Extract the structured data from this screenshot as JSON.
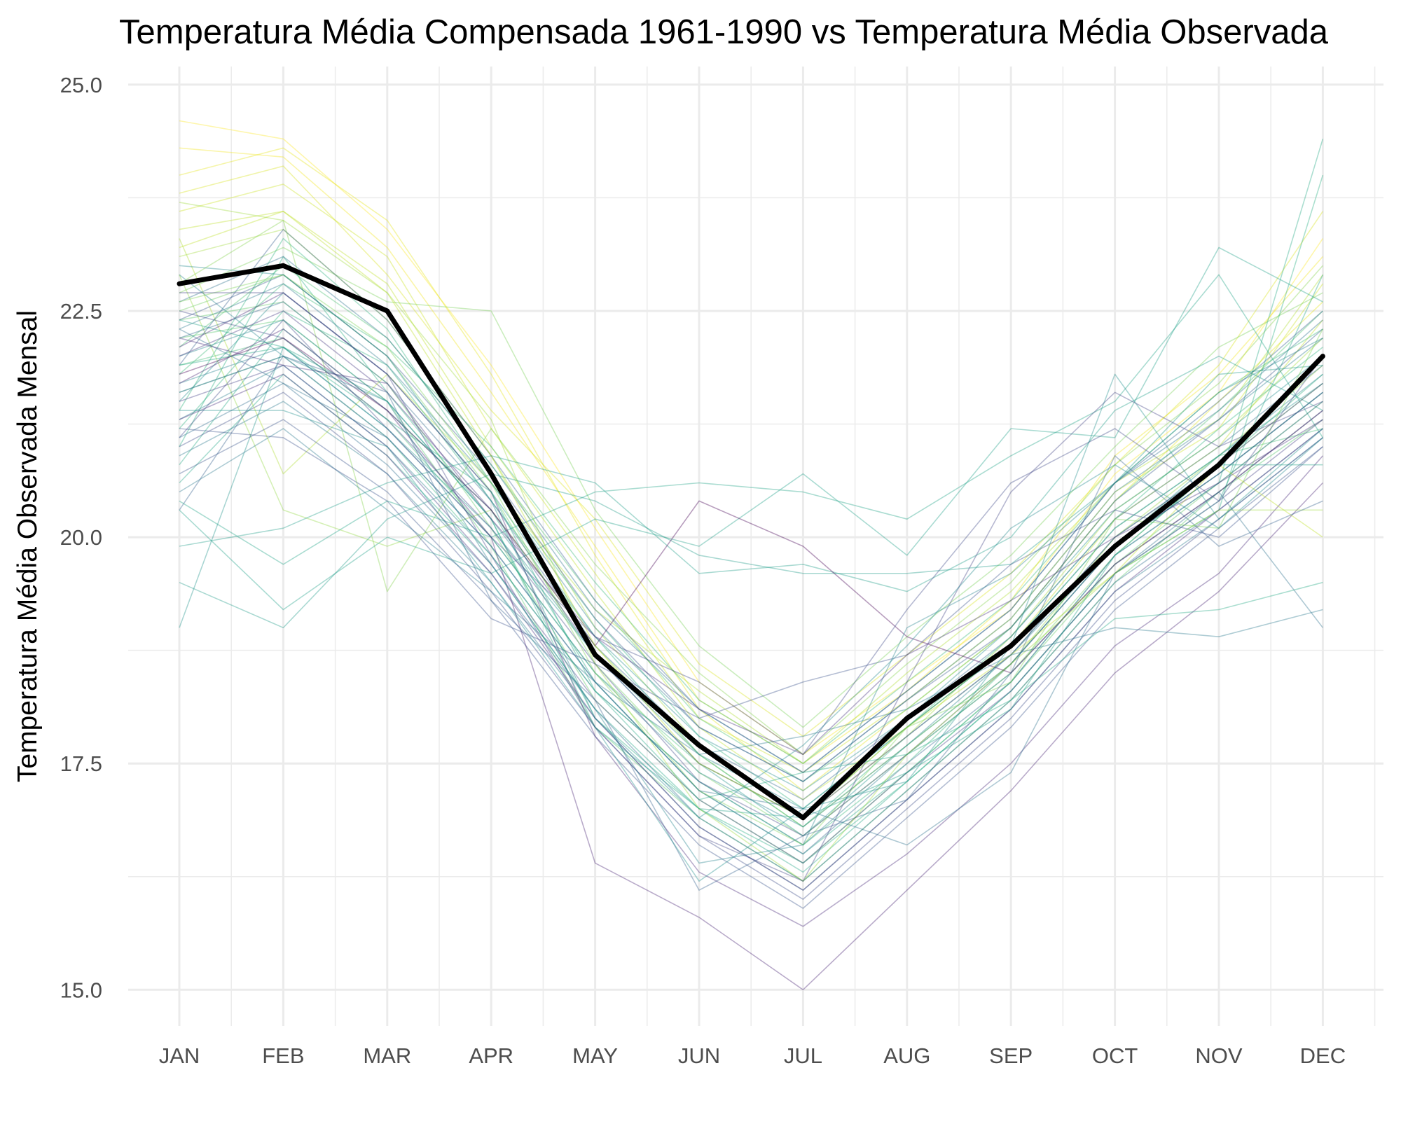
{
  "chart_data": {
    "type": "line",
    "title": "Temperatura Média Compensada 1961-1990 vs Temperatura Média Observada",
    "xlabel": "",
    "ylabel": "Temperatura Média Observada Mensal",
    "categories": [
      "JAN",
      "FEB",
      "MAR",
      "APR",
      "MAY",
      "JUN",
      "JUL",
      "AUG",
      "SEP",
      "OCT",
      "NOV",
      "DEC"
    ],
    "ylim": [
      14.6,
      25.2
    ],
    "yticks": [
      "15.0",
      "17.5",
      "20.0",
      "22.5",
      "25.0"
    ],
    "grid": true,
    "legend": "none",
    "colormap": "viridis",
    "series": [
      {
        "values": [
          22.8,
          23.0,
          22.5,
          20.7,
          18.7,
          17.7,
          16.9,
          18.0,
          18.8,
          19.9,
          20.8,
          22.0
        ],
        "color": "#000000",
        "role": "normal"
      },
      {
        "values": [
          24.6,
          24.4,
          23.4,
          21.9,
          20.1,
          18.4,
          17.6,
          18.4,
          19.2,
          20.7,
          21.6,
          23.3
        ],
        "color": "#fde725"
      },
      {
        "values": [
          24.3,
          24.2,
          23.2,
          21.6,
          19.9,
          18.2,
          17.5,
          18.3,
          19.3,
          20.9,
          21.8,
          23.1
        ],
        "color": "#f2e51d"
      },
      {
        "values": [
          24.0,
          24.3,
          23.5,
          21.8,
          19.8,
          18.1,
          17.2,
          18.1,
          19.0,
          20.4,
          21.5,
          22.6
        ],
        "color": "#e5e419"
      },
      {
        "values": [
          23.8,
          24.1,
          22.9,
          21.4,
          20.2,
          18.6,
          17.8,
          18.7,
          19.6,
          20.8,
          21.9,
          23.6
        ],
        "color": "#d8e219"
      },
      {
        "values": [
          23.6,
          23.9,
          23.1,
          21.2,
          19.6,
          18.0,
          17.4,
          18.2,
          19.1,
          20.5,
          21.2,
          22.8
        ],
        "color": "#cae11f"
      },
      {
        "values": [
          23.4,
          23.6,
          22.8,
          21.0,
          19.4,
          17.9,
          17.1,
          17.9,
          18.8,
          20.2,
          21.0,
          22.4
        ],
        "color": "#bddf26"
      },
      {
        "values": [
          23.3,
          20.7,
          21.8,
          20.6,
          19.2,
          18.3,
          17.5,
          18.5,
          19.4,
          20.6,
          21.3,
          22.9
        ],
        "color": "#addc30"
      },
      {
        "values": [
          23.1,
          23.4,
          22.4,
          20.9,
          19.0,
          17.7,
          16.9,
          17.8,
          18.9,
          20.3,
          21.1,
          22.2
        ],
        "color": "#a0da39"
      },
      {
        "values": [
          22.9,
          20.3,
          19.9,
          20.3,
          18.8,
          17.6,
          16.8,
          17.7,
          18.6,
          20.0,
          20.9,
          21.9
        ],
        "color": "#90d743"
      },
      {
        "values": [
          22.8,
          23.5,
          19.4,
          21.2,
          19.7,
          18.5,
          17.6,
          18.6,
          19.5,
          20.8,
          21.7,
          23.0
        ],
        "color": "#83d34b"
      },
      {
        "values": [
          22.7,
          23.2,
          22.6,
          22.5,
          20.3,
          18.8,
          17.9,
          18.9,
          19.8,
          21.0,
          22.1,
          22.7
        ],
        "color": "#75d054"
      },
      {
        "values": [
          22.5,
          22.9,
          22.0,
          20.5,
          18.6,
          17.4,
          16.7,
          17.6,
          18.5,
          19.8,
          20.8,
          21.7
        ],
        "color": "#68cd5b"
      },
      {
        "values": [
          22.4,
          22.6,
          21.7,
          20.1,
          18.2,
          17.1,
          16.4,
          17.4,
          18.4,
          19.7,
          20.6,
          21.5
        ],
        "color": "#5cc863"
      },
      {
        "values": [
          22.2,
          22.4,
          21.5,
          19.9,
          17.9,
          16.9,
          16.2,
          17.2,
          18.2,
          19.5,
          20.5,
          21.3
        ],
        "color": "#52c569"
      },
      {
        "values": [
          22.1,
          23.0,
          22.2,
          20.8,
          19.3,
          18.0,
          17.3,
          18.1,
          19.0,
          20.4,
          21.4,
          22.5
        ],
        "color": "#48c16e"
      },
      {
        "values": [
          21.9,
          22.2,
          21.3,
          20.0,
          18.5,
          17.5,
          16.9,
          17.9,
          18.8,
          20.1,
          20.9,
          21.2
        ],
        "color": "#3fbc73"
      },
      {
        "values": [
          21.8,
          22.8,
          22.1,
          21.0,
          19.5,
          18.2,
          17.5,
          18.4,
          19.3,
          20.6,
          21.6,
          22.3
        ],
        "color": "#38b977"
      },
      {
        "values": [
          21.6,
          22.0,
          21.1,
          19.8,
          18.3,
          17.3,
          16.6,
          17.5,
          18.6,
          19.9,
          20.7,
          21.6
        ],
        "color": "#31b57b"
      },
      {
        "values": [
          21.4,
          23.3,
          22.3,
          20.6,
          19.1,
          17.8,
          17.0,
          17.9,
          18.9,
          20.2,
          21.2,
          22.1
        ],
        "color": "#2db27d"
      },
      {
        "values": [
          21.2,
          22.5,
          21.9,
          20.4,
          18.9,
          17.6,
          16.8,
          17.8,
          18.7,
          20.0,
          20.8,
          21.8
        ],
        "color": "#29af7f"
      },
      {
        "values": [
          21.0,
          23.1,
          21.6,
          20.2,
          18.0,
          17.0,
          16.4,
          17.3,
          18.3,
          19.6,
          20.3,
          24.0
        ],
        "color": "#26ad81"
      },
      {
        "values": [
          20.8,
          22.3,
          21.4,
          20.3,
          18.4,
          17.2,
          16.5,
          17.4,
          18.4,
          19.8,
          20.6,
          24.4
        ],
        "color": "#23a983"
      },
      {
        "values": [
          20.6,
          21.8,
          20.9,
          19.7,
          18.1,
          17.0,
          16.3,
          17.3,
          18.3,
          19.6,
          20.4,
          22.9
        ],
        "color": "#21a685"
      },
      {
        "values": [
          20.4,
          19.7,
          20.4,
          20.0,
          20.5,
          20.6,
          20.5,
          20.2,
          20.9,
          21.5,
          22.9,
          21.1
        ],
        "color": "#20a386"
      },
      {
        "values": [
          20.3,
          19.2,
          20.0,
          19.6,
          20.2,
          19.9,
          20.7,
          19.8,
          21.2,
          21.1,
          23.2,
          22.6
        ],
        "color": "#1fa088"
      },
      {
        "values": [
          19.9,
          20.1,
          20.6,
          20.9,
          20.6,
          19.6,
          19.7,
          19.4,
          20.0,
          21.4,
          22.0,
          21.4
        ],
        "color": "#1f9d89"
      },
      {
        "values": [
          19.5,
          19.0,
          20.2,
          20.7,
          20.4,
          19.8,
          19.6,
          19.6,
          19.7,
          20.6,
          21.8,
          21.9
        ],
        "color": "#1f9a8a"
      },
      {
        "values": [
          19.0,
          22.1,
          21.2,
          20.1,
          18.7,
          17.5,
          16.7,
          17.7,
          18.6,
          19.9,
          20.9,
          21.7
        ],
        "color": "#20928c"
      },
      {
        "values": [
          21.5,
          22.7,
          21.8,
          20.5,
          18.9,
          17.8,
          17.2,
          18.0,
          19.0,
          20.3,
          21.1,
          22.0
        ],
        "color": "#228d8d"
      },
      {
        "values": [
          22.0,
          22.4,
          21.5,
          20.2,
          18.7,
          17.6,
          17.0,
          17.9,
          18.8,
          20.1,
          20.9,
          21.8
        ],
        "color": "#24878e"
      },
      {
        "values": [
          21.7,
          22.1,
          21.2,
          20.0,
          18.5,
          17.4,
          16.8,
          17.7,
          18.7,
          19.9,
          20.7,
          21.6
        ],
        "color": "#26818e"
      },
      {
        "values": [
          21.3,
          21.9,
          21.0,
          19.8,
          18.3,
          17.3,
          16.6,
          17.6,
          18.5,
          19.7,
          20.5,
          21.4
        ],
        "color": "#277f8e"
      },
      {
        "values": [
          22.3,
          22.8,
          21.9,
          20.6,
          19.0,
          17.9,
          17.3,
          18.2,
          19.1,
          20.5,
          21.3,
          22.2
        ],
        "color": "#29798e"
      },
      {
        "values": [
          20.9,
          21.5,
          20.7,
          19.5,
          18.0,
          16.8,
          16.1,
          17.1,
          18.1,
          19.4,
          20.2,
          21.1
        ],
        "color": "#2a788e"
      },
      {
        "values": [
          22.6,
          23.1,
          22.2,
          20.8,
          19.2,
          18.1,
          17.4,
          18.3,
          19.2,
          20.6,
          21.4,
          22.4
        ],
        "color": "#2c728e"
      },
      {
        "values": [
          21.1,
          21.7,
          20.8,
          19.6,
          18.1,
          16.9,
          16.2,
          17.2,
          18.2,
          19.5,
          20.3,
          21.2
        ],
        "color": "#2e6d8e"
      },
      {
        "values": [
          22.2,
          22.6,
          21.7,
          20.4,
          18.8,
          17.7,
          17.1,
          18.0,
          18.9,
          20.2,
          21.0,
          21.9
        ],
        "color": "#31688e"
      },
      {
        "values": [
          21.6,
          22.0,
          21.1,
          19.9,
          18.4,
          17.2,
          16.5,
          17.5,
          18.4,
          19.8,
          20.6,
          21.5
        ],
        "color": "#33638d"
      },
      {
        "values": [
          21.9,
          23.4,
          22.4,
          20.9,
          19.3,
          18.1,
          17.4,
          18.3,
          19.2,
          20.6,
          21.5,
          22.5
        ],
        "color": "#355f8d"
      },
      {
        "values": [
          22.4,
          22.9,
          22.0,
          20.7,
          19.1,
          17.9,
          17.3,
          18.2,
          19.0,
          20.4,
          21.3,
          22.3
        ],
        "color": "#38598c"
      },
      {
        "values": [
          20.7,
          21.3,
          20.5,
          19.3,
          17.8,
          16.6,
          15.9,
          16.9,
          17.9,
          19.2,
          20.1,
          21.0
        ],
        "color": "#3a548c"
      },
      {
        "values": [
          21.0,
          21.6,
          20.7,
          19.4,
          17.9,
          16.7,
          16.0,
          17.0,
          18.0,
          19.3,
          20.2,
          21.1
        ],
        "color": "#3d4d8a"
      },
      {
        "values": [
          22.5,
          22.2,
          21.3,
          20.1,
          18.6,
          17.3,
          16.7,
          17.6,
          18.6,
          19.9,
          20.7,
          21.6
        ],
        "color": "#404688"
      },
      {
        "values": [
          21.5,
          21.9,
          21.0,
          19.7,
          18.2,
          17.1,
          16.4,
          17.4,
          18.3,
          19.6,
          20.4,
          21.3
        ],
        "color": "#424086"
      },
      {
        "values": [
          22.0,
          22.5,
          21.6,
          20.3,
          18.7,
          17.5,
          16.9,
          17.8,
          18.7,
          20.0,
          20.8,
          21.7
        ],
        "color": "#453781"
      },
      {
        "values": [
          21.3,
          21.8,
          20.9,
          19.6,
          18.0,
          16.8,
          16.1,
          17.1,
          18.1,
          19.4,
          20.3,
          21.2
        ],
        "color": "#46307e"
      },
      {
        "values": [
          22.1,
          22.7,
          21.8,
          20.5,
          17.8,
          16.3,
          15.7,
          16.5,
          17.5,
          18.8,
          19.6,
          20.9
        ],
        "color": "#482878"
      },
      {
        "values": [
          21.7,
          22.3,
          21.4,
          20.0,
          16.4,
          15.8,
          15.0,
          16.1,
          17.2,
          18.5,
          19.4,
          20.6
        ],
        "color": "#482173"
      },
      {
        "values": [
          21.8,
          22.2,
          21.4,
          20.3,
          18.8,
          20.4,
          19.9,
          18.9,
          18.5,
          19.7,
          20.5,
          21.4
        ],
        "color": "#440154"
      },
      {
        "values": [
          22.6,
          22.9,
          22.1,
          20.6,
          18.5,
          17.2,
          16.6,
          17.9,
          18.4,
          20.2,
          20.1,
          22.3
        ],
        "color": "#7ad151"
      },
      {
        "values": [
          23.2,
          23.6,
          22.7,
          20.9,
          18.8,
          17.5,
          16.9,
          17.9,
          18.7,
          19.6,
          20.8,
          20.0
        ],
        "color": "#bddf26"
      },
      {
        "values": [
          23.7,
          23.5,
          22.7,
          21.3,
          18.6,
          17.0,
          16.2,
          17.6,
          18.6,
          19.6,
          20.3,
          20.3
        ],
        "color": "#9fda3a"
      },
      {
        "values": [
          22.4,
          22.1,
          21.5,
          20.2,
          17.9,
          17.0,
          16.9,
          17.4,
          18.1,
          19.8,
          20.8,
          20.8
        ],
        "color": "#1fa187"
      },
      {
        "values": [
          21.9,
          22.1,
          21.3,
          20.5,
          18.3,
          17.1,
          17.4,
          17.6,
          18.2,
          19.1,
          19.2,
          19.5
        ],
        "color": "#22a884"
      },
      {
        "values": [
          20.5,
          21.2,
          20.3,
          19.4,
          18.4,
          17.6,
          17.8,
          18.1,
          18.7,
          19.0,
          18.9,
          19.2
        ],
        "color": "#2a788e"
      },
      {
        "values": [
          21.2,
          21.1,
          20.4,
          19.1,
          18.6,
          18.0,
          18.4,
          18.7,
          19.7,
          20.3,
          20.0,
          21.0
        ],
        "color": "#3b528b"
      },
      {
        "values": [
          20.3,
          22.0,
          21.6,
          19.3,
          18.2,
          16.1,
          16.7,
          17.1,
          18.5,
          20.9,
          19.9,
          20.4
        ],
        "color": "#34618d"
      },
      {
        "values": [
          21.4,
          21.4,
          21.0,
          19.5,
          17.9,
          16.2,
          17.0,
          17.3,
          18.8,
          21.8,
          20.2,
          21.2
        ],
        "color": "#21908d"
      },
      {
        "values": [
          22.3,
          21.7,
          21.1,
          19.9,
          18.4,
          17.2,
          17.0,
          16.6,
          17.4,
          19.6,
          20.5,
          19.0
        ],
        "color": "#2c728e"
      },
      {
        "values": [
          21.1,
          22.4,
          21.2,
          20.0,
          18.9,
          18.4,
          17.6,
          19.2,
          20.6,
          21.2,
          20.4,
          22.0
        ],
        "color": "#3e4989"
      },
      {
        "values": [
          22.7,
          22.7,
          21.8,
          19.8,
          17.9,
          16.7,
          16.2,
          18.4,
          20.5,
          21.6,
          21.0,
          21.5
        ],
        "color": "#414487"
      },
      {
        "values": [
          22.9,
          22.0,
          21.5,
          19.7,
          18.1,
          16.4,
          16.6,
          19.0,
          19.6,
          20.6,
          21.6,
          22.2
        ],
        "color": "#25838e"
      },
      {
        "values": [
          23.0,
          22.9,
          22.0,
          20.4,
          18.0,
          16.9,
          17.7,
          18.8,
          20.1,
          20.8,
          20.1,
          21.1
        ],
        "color": "#23898e"
      },
      {
        "values": [
          22.2,
          21.9,
          21.7,
          20.2,
          18.9,
          18.1,
          17.6,
          18.7,
          19.3,
          20.0,
          20.6,
          21.3
        ],
        "color": "#46327e"
      }
    ]
  }
}
